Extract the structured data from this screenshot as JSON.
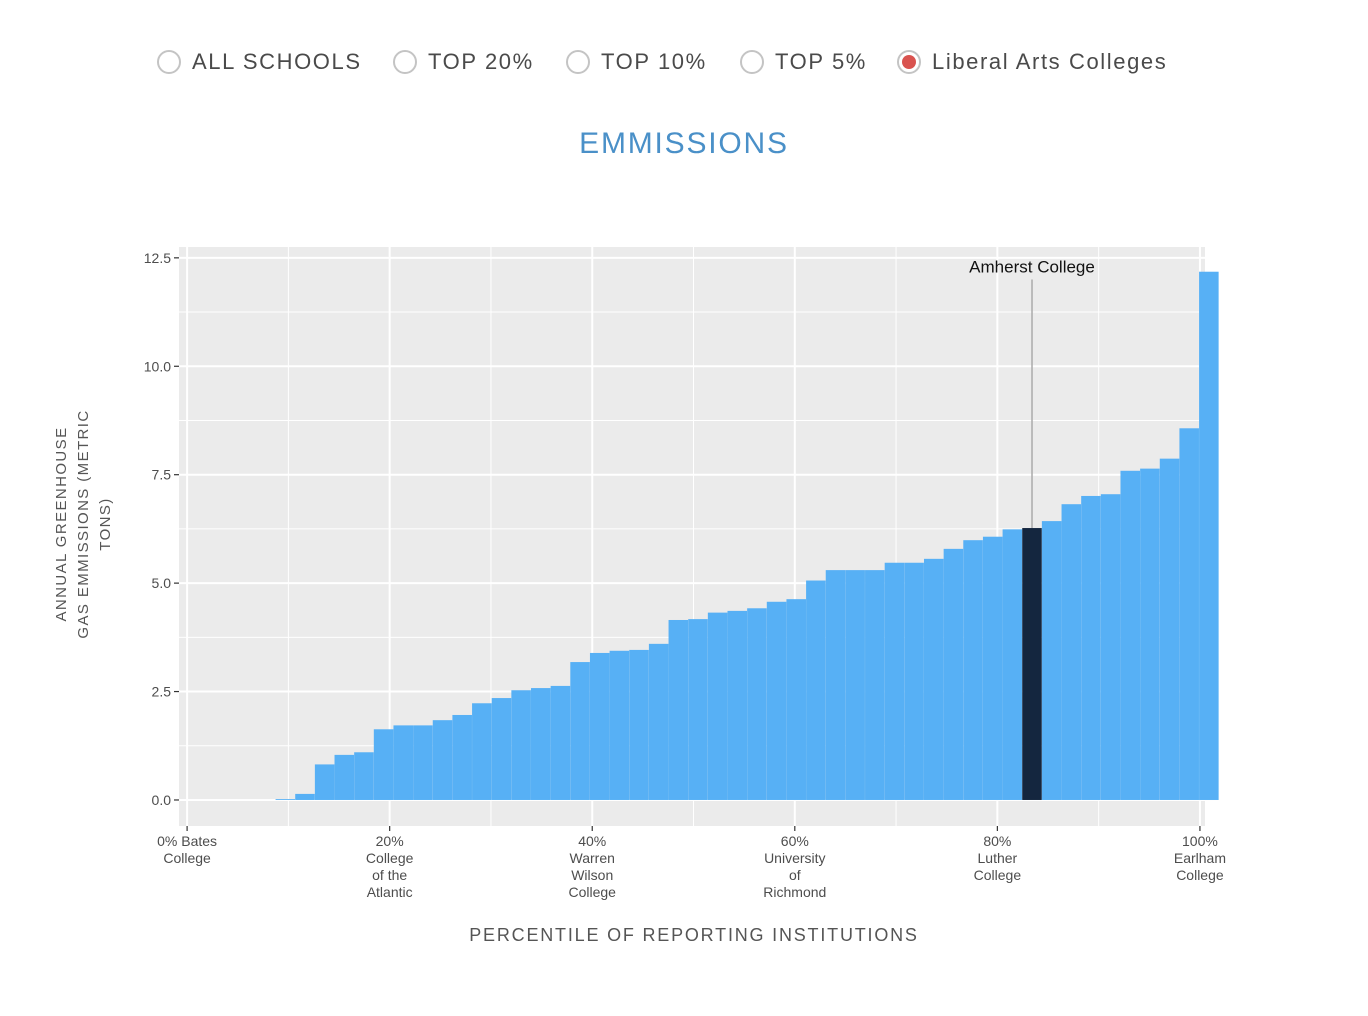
{
  "filters": {
    "options": [
      {
        "label": "ALL SCHOOLS",
        "selected": false
      },
      {
        "label": "TOP 20%",
        "selected": false
      },
      {
        "label": "TOP 10%",
        "selected": false
      },
      {
        "label": "TOP 5%",
        "selected": false
      },
      {
        "label": "Liberal Arts Colleges",
        "selected": true
      }
    ],
    "selected_color": "#d9534f"
  },
  "chart_title": "EMMISSIONS",
  "chart_data": {
    "type": "bar",
    "title": "EMMISSIONS",
    "xlabel": "PERCENTILE OF REPORTING INSTITUTIONS",
    "ylabel": "ANNUAL GREENHOUSE GAS EMMISSIONS (METRIC TONS)",
    "ylabel_lines": [
      "ANNUAL GREENHOUSE",
      "GAS EMMISSIONS (METRIC",
      "TONS)"
    ],
    "ylim": [
      -0.6,
      12.75
    ],
    "xlim": [
      -0.8,
      100.5
    ],
    "yticks": [
      0.0,
      2.5,
      5.0,
      7.5,
      10.0,
      12.5
    ],
    "ytick_labels": [
      "0.0",
      "2.5",
      "5.0",
      "7.5",
      "10.0",
      "12.5"
    ],
    "xticks": [
      {
        "x": 0,
        "lines": [
          "0% Bates",
          "College"
        ]
      },
      {
        "x": 20,
        "lines": [
          "20%",
          "College",
          "of the",
          "Atlantic"
        ]
      },
      {
        "x": 40,
        "lines": [
          "40%",
          "Warren",
          "Wilson",
          "College"
        ]
      },
      {
        "x": 60,
        "lines": [
          "60%",
          "University",
          "of",
          "Richmond"
        ]
      },
      {
        "x": 80,
        "lines": [
          "80%",
          "Luther",
          "College"
        ]
      },
      {
        "x": 100,
        "lines": [
          "100%",
          "Earlham",
          "College"
        ]
      }
    ],
    "bar_width": 1.93,
    "x": [
      0,
      1.94,
      3.88,
      5.82,
      7.76,
      9.7,
      11.64,
      13.58,
      15.52,
      17.46,
      19.4,
      21.34,
      23.28,
      25.22,
      27.16,
      29.1,
      31.04,
      32.98,
      34.92,
      36.86,
      38.8,
      40.74,
      42.68,
      44.62,
      46.56,
      48.5,
      50.44,
      52.38,
      54.32,
      56.26,
      58.2,
      60.14,
      62.08,
      64.02,
      65.96,
      67.9,
      69.84,
      71.78,
      73.72,
      75.66,
      77.6,
      79.54,
      81.48,
      83.42,
      85.36,
      87.3,
      89.24,
      91.18,
      93.12,
      95.06,
      97.0,
      98.94,
      100.88
    ],
    "values": [
      0.0,
      0.0,
      0.0,
      0.0,
      0.0,
      0.02,
      0.14,
      0.82,
      1.04,
      1.1,
      1.63,
      1.72,
      1.72,
      1.84,
      1.96,
      2.23,
      2.35,
      2.53,
      2.58,
      2.63,
      3.18,
      3.39,
      3.44,
      3.46,
      3.6,
      4.15,
      4.17,
      4.32,
      4.36,
      4.42,
      4.57,
      4.63,
      5.06,
      5.3,
      5.3,
      5.3,
      5.47,
      5.47,
      5.56,
      5.79,
      5.99,
      6.07,
      6.24,
      6.27,
      6.43,
      6.82,
      7.01,
      7.05,
      7.59,
      7.64,
      7.87,
      8.57,
      12.18
    ],
    "highlight_index": 43,
    "highlight_label": "Amherst College",
    "colors": {
      "bar": "#57b0f5",
      "highlight": "#14263f",
      "panel": "#ebebeb",
      "grid": "#ffffff",
      "annotation_line": "#aaaaaa"
    },
    "grid": true
  }
}
